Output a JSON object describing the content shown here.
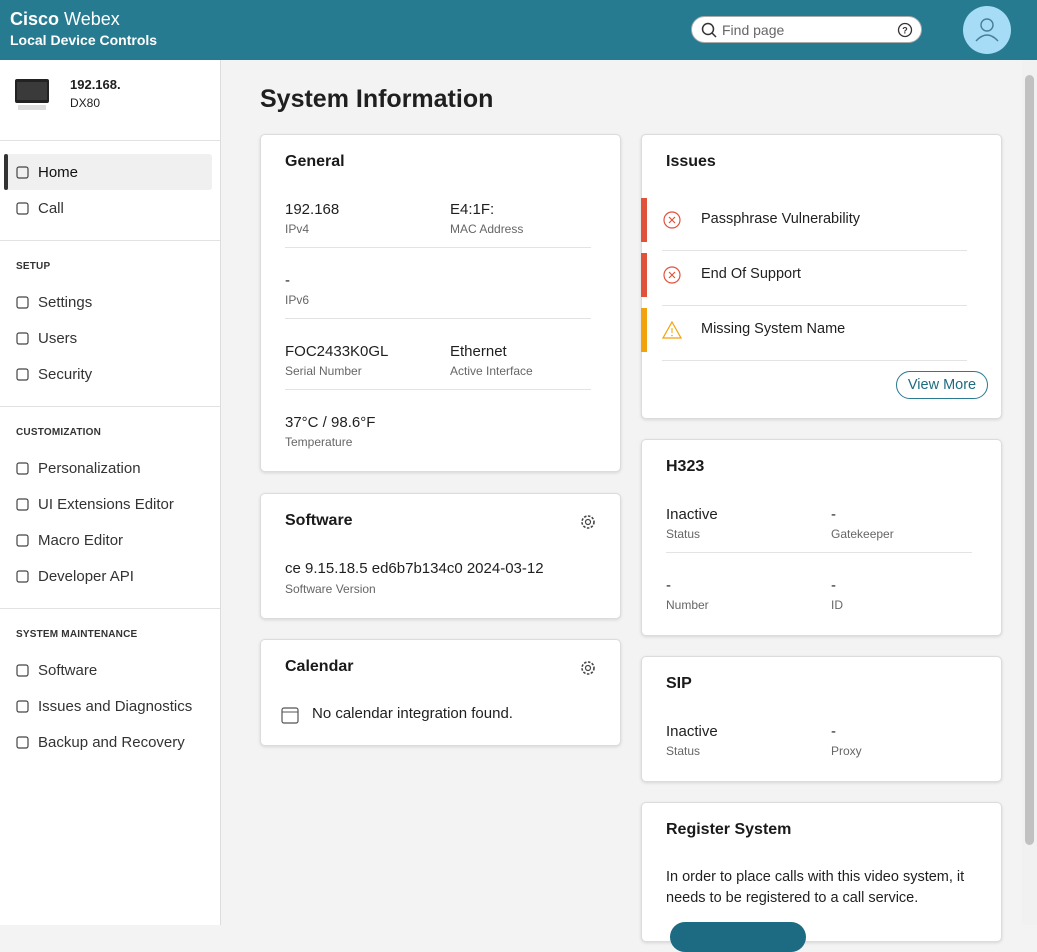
{
  "header": {
    "brand": "Cisco",
    "product": "Webex",
    "subtitle": "Local Device Controls",
    "search_placeholder": "Find page"
  },
  "device": {
    "address": "192.168.",
    "model": "DX80"
  },
  "nav": {
    "main": [
      {
        "label": "Home",
        "active": true
      },
      {
        "label": "Call",
        "active": false
      }
    ],
    "sections": [
      {
        "title": "SETUP",
        "items": [
          "Settings",
          "Users",
          "Security"
        ]
      },
      {
        "title": "CUSTOMIZATION",
        "items": [
          "Personalization",
          "UI Extensions Editor",
          "Macro Editor",
          "Developer API"
        ]
      },
      {
        "title": "SYSTEM MAINTENANCE",
        "items": [
          "Software",
          "Issues and Diagnostics",
          "Backup and Recovery"
        ]
      }
    ]
  },
  "page": {
    "title": "System Information"
  },
  "general": {
    "title": "General",
    "rows": [
      [
        {
          "value": "192.168",
          "label": "IPv4"
        },
        {
          "value": "E4:1F:",
          "label": "MAC Address"
        }
      ],
      [
        {
          "value": "-",
          "label": "IPv6"
        }
      ],
      [
        {
          "value": "FOC2433K0GL",
          "label": "Serial Number"
        },
        {
          "value": "Ethernet",
          "label": "Active Interface"
        }
      ],
      [
        {
          "value": "37°C / 98.6°F",
          "label": "Temperature"
        }
      ]
    ]
  },
  "software": {
    "title": "Software",
    "value": "ce 9.15.18.5 ed6b7b134c0 2024-03-12",
    "label": "Software Version"
  },
  "calendar": {
    "title": "Calendar",
    "message": "No calendar integration found."
  },
  "issues": {
    "title": "Issues",
    "items": [
      {
        "text": "Passphrase Vulnerability",
        "severity": "error"
      },
      {
        "text": "End Of Support",
        "severity": "error"
      },
      {
        "text": "Missing System Name",
        "severity": "warning"
      }
    ],
    "button": "View More"
  },
  "h323": {
    "title": "H323",
    "rows": [
      [
        {
          "value": "Inactive",
          "label": "Status"
        },
        {
          "value": "-",
          "label": "Gatekeeper"
        }
      ],
      [
        {
          "value": "-",
          "label": "Number"
        },
        {
          "value": "-",
          "label": "ID"
        }
      ]
    ]
  },
  "sip": {
    "title": "SIP",
    "rows": [
      [
        {
          "value": "Inactive",
          "label": "Status"
        },
        {
          "value": "-",
          "label": "Proxy"
        }
      ]
    ]
  },
  "register": {
    "title": "Register System",
    "text": "In order to place calls with this video system, it needs to be registered to a call service."
  }
}
